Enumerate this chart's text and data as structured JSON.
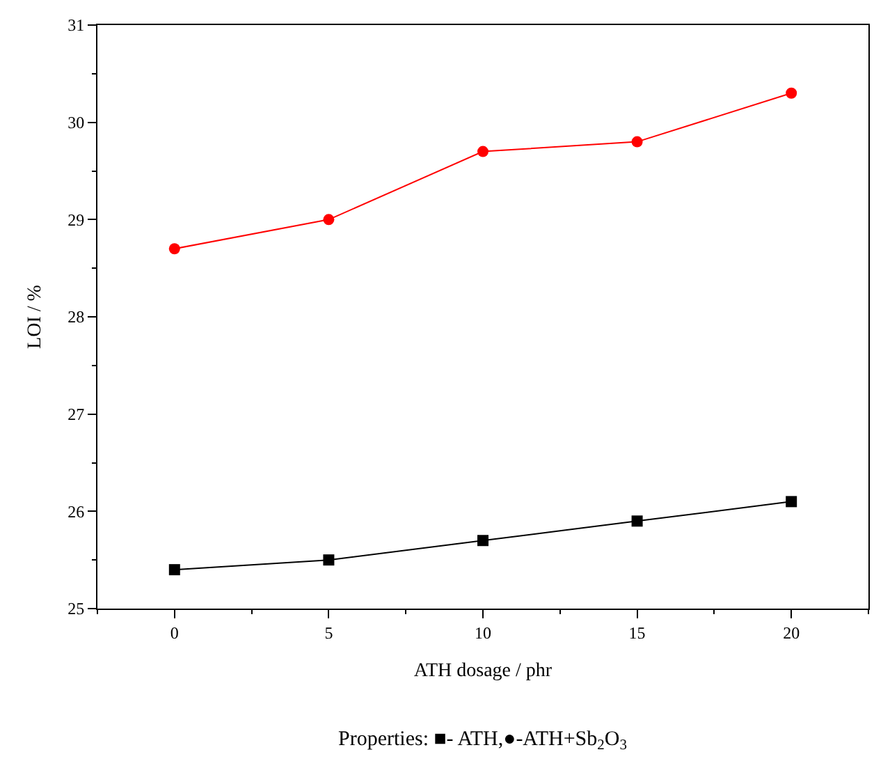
{
  "chart_data": {
    "type": "line",
    "xlabel": "ATH dosage / phr",
    "ylabel": "LOI / %",
    "x": [
      0,
      5,
      10,
      15,
      20
    ],
    "series": [
      {
        "color": "#000000",
        "marker": "square",
        "values": [
          25.4,
          25.5,
          25.7,
          25.9,
          26.1
        ]
      },
      {
        "color": "#ff0000",
        "marker": "circle",
        "values": [
          28.7,
          29.0,
          29.7,
          29.8,
          30.3
        ]
      }
    ],
    "xlim": [
      -2.5,
      22.5
    ],
    "xticks": [
      0,
      5,
      10,
      15,
      20
    ],
    "ylim": [
      25,
      31
    ],
    "yticks": [
      25,
      26,
      27,
      28,
      29,
      30,
      31
    ],
    "line_style": "solid",
    "annotations": [
      "Properties: ■- ATH,●-ATH+Sb$_{2}$O$_{3}$"
    ]
  }
}
